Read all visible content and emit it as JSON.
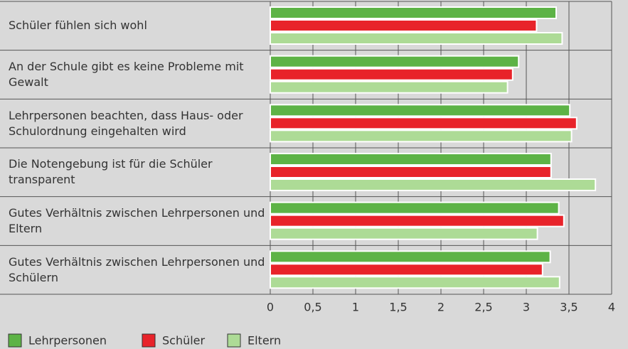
{
  "chart_data": {
    "type": "bar",
    "orientation": "horizontal",
    "categories": [
      "Schüler fühlen sich wohl",
      "An der Schule gibt es keine Probleme mit Gewalt",
      "Lehrpersonen beachten, dass Haus- oder Schulordnung eingehalten wird",
      "Die Notengebung ist für die Schüler transparent",
      "Gutes Verhältnis zwischen Lehrpersonen und Eltern",
      "Gutes Verhältnis zwischen Lehrpersonen und Schülern"
    ],
    "series": [
      {
        "name": "Lehrpersonen",
        "color": "#5db346",
        "values": [
          3.35,
          2.91,
          3.51,
          3.29,
          3.38,
          3.28
        ]
      },
      {
        "name": "Schüler",
        "color": "#e8232a",
        "values": [
          3.12,
          2.84,
          3.59,
          3.29,
          3.44,
          3.19
        ]
      },
      {
        "name": "Eltern",
        "color": "#addb96",
        "values": [
          3.42,
          2.78,
          3.53,
          3.81,
          3.13,
          3.39
        ]
      }
    ],
    "xlim": [
      0,
      4
    ],
    "xticks": [
      0,
      {
        "value": 0.5,
        "label": "0,5"
      },
      1,
      {
        "value": 1.5,
        "label": "1,5"
      },
      2,
      {
        "value": 2.5,
        "label": "2,5"
      },
      3,
      {
        "value": 3.5,
        "label": "3,5"
      },
      4
    ],
    "legend": "bottom-left"
  }
}
